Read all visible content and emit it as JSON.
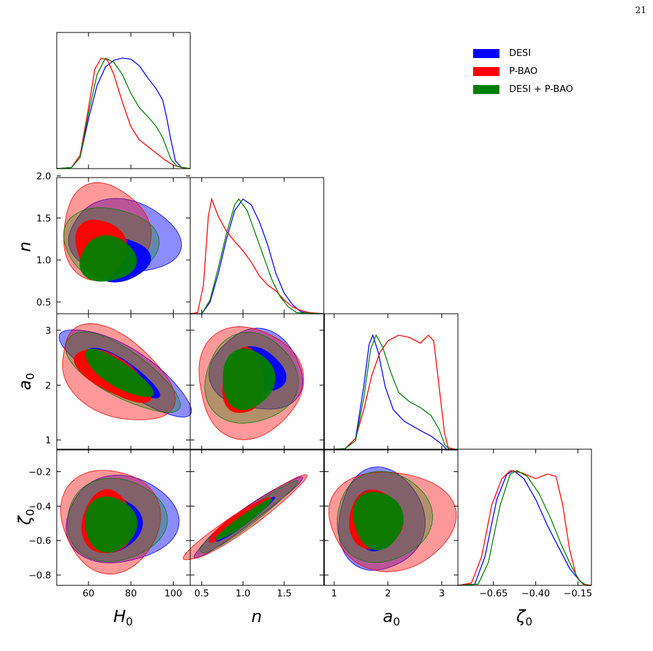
{
  "page": {
    "number": "21"
  },
  "legend": [
    {
      "label": "DESI",
      "color": "#0000ff"
    },
    {
      "label": "P-BAO",
      "color": "#ff0000"
    },
    {
      "label": "DESI + P-BAO",
      "color": "#008000"
    }
  ],
  "chart_data": {
    "type": "triangle-corner-plot",
    "parameters": [
      "H_0",
      "n",
      "a_0",
      "ζ_0"
    ],
    "axis_labels": {
      "H_0": "H",
      "n": "n",
      "a_0": "a",
      "zeta_0": "ζ"
    },
    "axis_label_subscripts": {
      "H_0": "0",
      "n": "",
      "a_0": "0",
      "zeta_0": "0"
    },
    "ranges": {
      "H_0": [
        45,
        108
      ],
      "n": [
        0.36,
        1.98
      ],
      "a_0": [
        0.82,
        3.3
      ],
      "zeta_0": [
        -0.86,
        -0.07
      ]
    },
    "ticks": {
      "H_0": [
        60,
        80,
        100
      ],
      "n": [
        0.5,
        1.0,
        1.5
      ],
      "a_0": [
        1,
        2,
        3
      ],
      "zeta_0_x": [
        -0.65,
        -0.4,
        -0.15
      ],
      "zeta_0_y": [
        -0.2,
        -0.4,
        -0.6,
        -0.8
      ]
    },
    "tick_labels": {
      "H_0": [
        "60",
        "80",
        "100"
      ],
      "n_x": [
        "0.5",
        "1.0",
        "1.5"
      ],
      "n_y": [
        "0.5",
        "1.0",
        "1.5",
        "2.0"
      ],
      "a_0_x": [
        "1",
        "2",
        "3"
      ],
      "a_0_y": [
        "1",
        "2",
        "3"
      ],
      "zeta_0_x": [
        "−0.65",
        "−0.40",
        "−0.15"
      ],
      "zeta_0_y": [
        "−0.2",
        "−0.4",
        "−0.6",
        "−0.8"
      ]
    },
    "series": [
      {
        "name": "DESI",
        "color": "#0000ff",
        "marginals": {
          "H_0": [
            [
              45,
              0
            ],
            [
              52,
              0.01
            ],
            [
              56,
              0.1
            ],
            [
              60,
              0.45
            ],
            [
              64,
              0.75
            ],
            [
              68,
              0.92
            ],
            [
              72,
              0.98
            ],
            [
              76,
              1.0
            ],
            [
              80,
              0.99
            ],
            [
              84,
              0.93
            ],
            [
              88,
              0.82
            ],
            [
              92,
              0.72
            ],
            [
              95,
              0.62
            ],
            [
              97,
              0.45
            ],
            [
              99,
              0.25
            ],
            [
              101,
              0.07
            ],
            [
              104,
              0.01
            ],
            [
              108,
              0
            ]
          ],
          "n": [
            [
              0.36,
              0
            ],
            [
              0.5,
              0.0
            ],
            [
              0.6,
              0.1
            ],
            [
              0.7,
              0.35
            ],
            [
              0.8,
              0.65
            ],
            [
              0.9,
              0.9
            ],
            [
              1.0,
              1.0
            ],
            [
              1.1,
              0.95
            ],
            [
              1.2,
              0.8
            ],
            [
              1.3,
              0.6
            ],
            [
              1.4,
              0.35
            ],
            [
              1.5,
              0.18
            ],
            [
              1.6,
              0.08
            ],
            [
              1.7,
              0.02
            ],
            [
              1.8,
              0
            ],
            [
              1.98,
              0
            ]
          ],
          "a_0": [
            [
              0.82,
              0
            ],
            [
              1.2,
              0.01
            ],
            [
              1.4,
              0.1
            ],
            [
              1.55,
              0.55
            ],
            [
              1.65,
              0.92
            ],
            [
              1.72,
              1.0
            ],
            [
              1.82,
              0.85
            ],
            [
              1.95,
              0.55
            ],
            [
              2.1,
              0.35
            ],
            [
              2.3,
              0.25
            ],
            [
              2.6,
              0.17
            ],
            [
              2.8,
              0.12
            ],
            [
              3.0,
              0.05
            ],
            [
              3.1,
              0.0
            ],
            [
              3.3,
              0
            ]
          ],
          "zeta_0": [
            [
              -0.86,
              0
            ],
            [
              -0.76,
              0.01
            ],
            [
              -0.7,
              0.25
            ],
            [
              -0.63,
              0.75
            ],
            [
              -0.57,
              0.97
            ],
            [
              -0.53,
              1.0
            ],
            [
              -0.47,
              0.93
            ],
            [
              -0.4,
              0.75
            ],
            [
              -0.33,
              0.52
            ],
            [
              -0.26,
              0.32
            ],
            [
              -0.2,
              0.15
            ],
            [
              -0.14,
              0.04
            ],
            [
              -0.1,
              0
            ],
            [
              -0.07,
              0
            ]
          ]
        }
      },
      {
        "name": "P-BAO",
        "color": "#ff0000",
        "marginals": {
          "H_0": [
            [
              45,
              0
            ],
            [
              52,
              0.01
            ],
            [
              56,
              0.12
            ],
            [
              60,
              0.55
            ],
            [
              63,
              0.9
            ],
            [
              66,
              1.0
            ],
            [
              69,
              0.98
            ],
            [
              72,
              0.85
            ],
            [
              76,
              0.6
            ],
            [
              80,
              0.38
            ],
            [
              84,
              0.26
            ],
            [
              88,
              0.2
            ],
            [
              92,
              0.14
            ],
            [
              96,
              0.08
            ],
            [
              100,
              0.03
            ],
            [
              104,
              0.01
            ],
            [
              108,
              0
            ]
          ],
          "n": [
            [
              0.36,
              0
            ],
            [
              0.45,
              0.01
            ],
            [
              0.52,
              0.25
            ],
            [
              0.58,
              0.85
            ],
            [
              0.62,
              1.0
            ],
            [
              0.7,
              0.85
            ],
            [
              0.8,
              0.72
            ],
            [
              0.9,
              0.63
            ],
            [
              1.0,
              0.55
            ],
            [
              1.1,
              0.45
            ],
            [
              1.2,
              0.33
            ],
            [
              1.3,
              0.25
            ],
            [
              1.4,
              0.2
            ],
            [
              1.5,
              0.12
            ],
            [
              1.6,
              0.06
            ],
            [
              1.7,
              0.03
            ],
            [
              1.8,
              0.01
            ],
            [
              1.98,
              0
            ]
          ],
          "a_0": [
            [
              0.82,
              0
            ],
            [
              1.2,
              0.01
            ],
            [
              1.4,
              0.1
            ],
            [
              1.55,
              0.35
            ],
            [
              1.7,
              0.65
            ],
            [
              1.85,
              0.85
            ],
            [
              2.0,
              0.95
            ],
            [
              2.2,
              1.0
            ],
            [
              2.4,
              0.98
            ],
            [
              2.6,
              0.93
            ],
            [
              2.75,
              1.0
            ],
            [
              2.85,
              0.95
            ],
            [
              2.95,
              0.55
            ],
            [
              3.05,
              0.15
            ],
            [
              3.12,
              0.02
            ],
            [
              3.3,
              0
            ]
          ],
          "zeta_0": [
            [
              -0.86,
              0
            ],
            [
              -0.78,
              0.02
            ],
            [
              -0.72,
              0.25
            ],
            [
              -0.66,
              0.7
            ],
            [
              -0.6,
              0.93
            ],
            [
              -0.55,
              1.0
            ],
            [
              -0.48,
              0.98
            ],
            [
              -0.4,
              0.93
            ],
            [
              -0.33,
              0.97
            ],
            [
              -0.28,
              0.95
            ],
            [
              -0.24,
              0.7
            ],
            [
              -0.2,
              0.32
            ],
            [
              -0.16,
              0.08
            ],
            [
              -0.12,
              0.01
            ],
            [
              -0.07,
              0
            ]
          ]
        }
      },
      {
        "name": "DESI + P-BAO",
        "color": "#008000",
        "marginals": {
          "H_0": [
            [
              45,
              0
            ],
            [
              52,
              0.01
            ],
            [
              56,
              0.1
            ],
            [
              60,
              0.5
            ],
            [
              64,
              0.85
            ],
            [
              68,
              1.0
            ],
            [
              72,
              0.96
            ],
            [
              76,
              0.85
            ],
            [
              80,
              0.68
            ],
            [
              84,
              0.55
            ],
            [
              88,
              0.47
            ],
            [
              92,
              0.38
            ],
            [
              95,
              0.28
            ],
            [
              97,
              0.18
            ],
            [
              99,
              0.08
            ],
            [
              102,
              0.02
            ],
            [
              108,
              0
            ]
          ],
          "n": [
            [
              0.36,
              0
            ],
            [
              0.5,
              0.0
            ],
            [
              0.6,
              0.12
            ],
            [
              0.7,
              0.4
            ],
            [
              0.8,
              0.7
            ],
            [
              0.9,
              0.95
            ],
            [
              0.95,
              1.0
            ],
            [
              1.05,
              0.9
            ],
            [
              1.15,
              0.7
            ],
            [
              1.25,
              0.5
            ],
            [
              1.35,
              0.3
            ],
            [
              1.45,
              0.15
            ],
            [
              1.55,
              0.06
            ],
            [
              1.65,
              0.01
            ],
            [
              1.98,
              0
            ]
          ],
          "a_0": [
            [
              0.82,
              0
            ],
            [
              1.2,
              0.01
            ],
            [
              1.4,
              0.08
            ],
            [
              1.55,
              0.45
            ],
            [
              1.68,
              0.88
            ],
            [
              1.78,
              1.0
            ],
            [
              1.9,
              0.9
            ],
            [
              2.05,
              0.68
            ],
            [
              2.2,
              0.5
            ],
            [
              2.4,
              0.42
            ],
            [
              2.6,
              0.37
            ],
            [
              2.8,
              0.3
            ],
            [
              2.95,
              0.18
            ],
            [
              3.05,
              0.05
            ],
            [
              3.15,
              0.0
            ],
            [
              3.3,
              0
            ]
          ],
          "zeta_0": [
            [
              -0.86,
              0
            ],
            [
              -0.74,
              0.01
            ],
            [
              -0.68,
              0.2
            ],
            [
              -0.61,
              0.7
            ],
            [
              -0.55,
              0.97
            ],
            [
              -0.51,
              1.0
            ],
            [
              -0.45,
              0.95
            ],
            [
              -0.38,
              0.8
            ],
            [
              -0.31,
              0.58
            ],
            [
              -0.25,
              0.36
            ],
            [
              -0.19,
              0.17
            ],
            [
              -0.14,
              0.04
            ],
            [
              -0.1,
              0
            ],
            [
              -0.07,
              0
            ]
          ]
        }
      }
    ]
  }
}
